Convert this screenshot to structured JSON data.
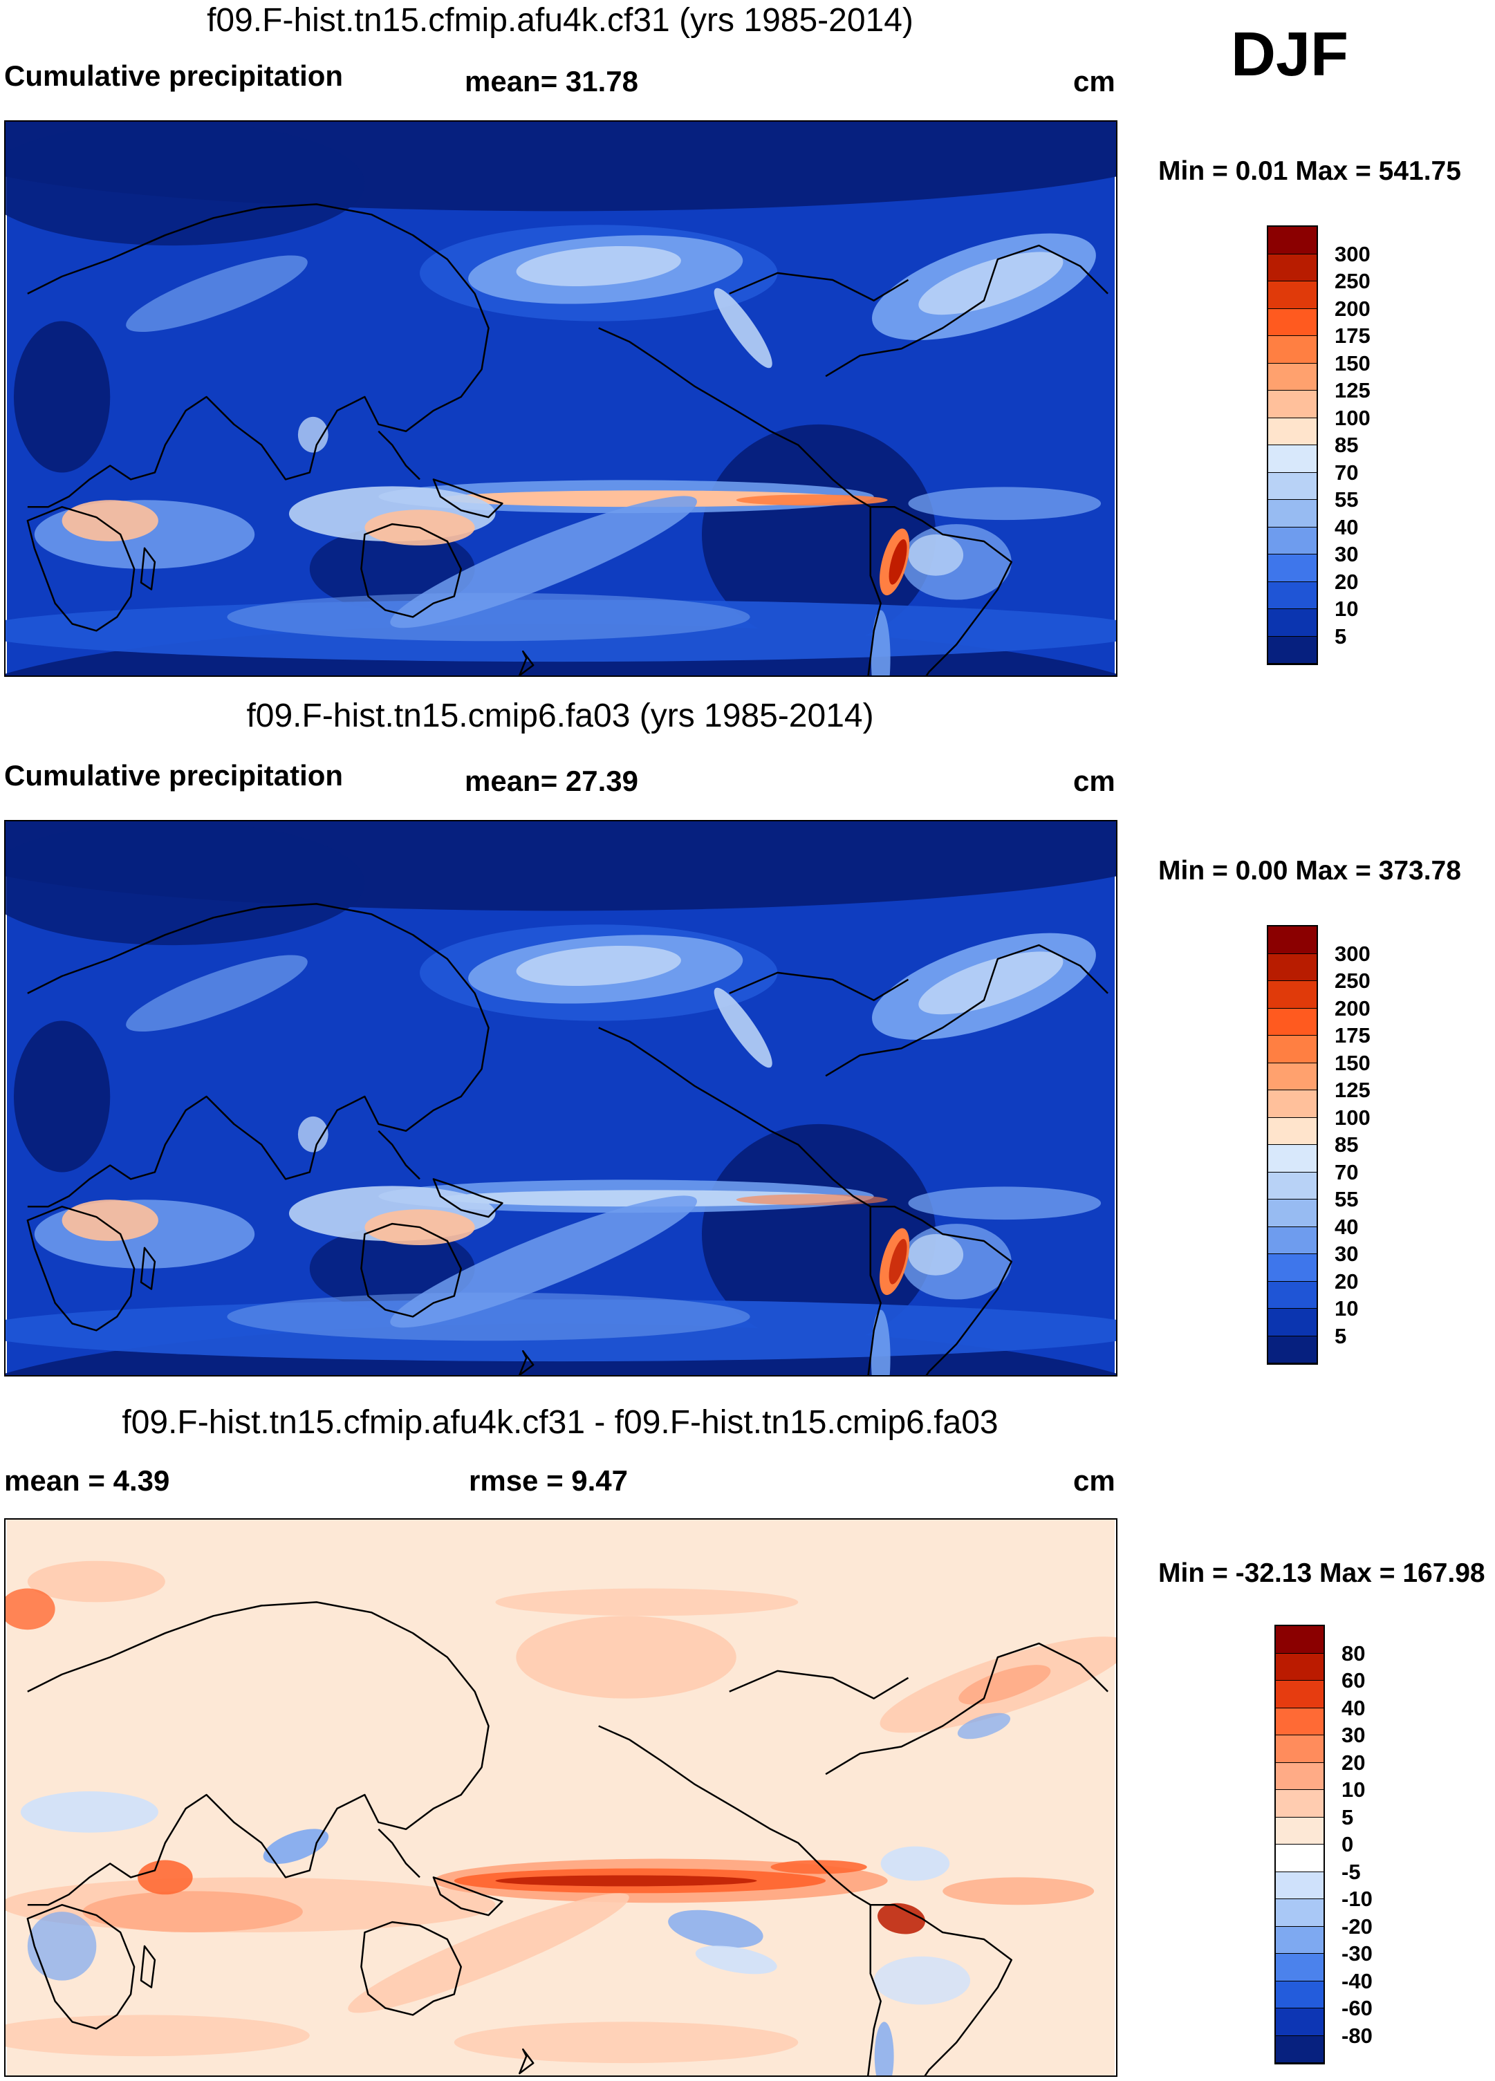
{
  "season": "DJF",
  "panels": [
    {
      "title": "f09.F-hist.tn15.cfmip.afu4k.cf31 (yrs 1985-2014)",
      "left_label": "Cumulative precipitation",
      "mid_label": "mean=  31.78",
      "units": "cm",
      "minmax": "Min =    0.01 Max = 541.75",
      "colorbar_labels": [
        "300",
        "250",
        "200",
        "175",
        "150",
        "125",
        "100",
        "85",
        "70",
        "55",
        "40",
        "30",
        "20",
        "10",
        "5"
      ],
      "colorbar_colors": [
        "#8b0000",
        "#b81c00",
        "#e03a0a",
        "#ff5a1f",
        "#ff7f42",
        "#ffa16e",
        "#ffc09b",
        "#ffe4cc",
        "#d8e8fb",
        "#b8d2f6",
        "#97bbf2",
        "#6e9cee",
        "#3e76eb",
        "#1f55d6",
        "#0b35b0",
        "#06207f"
      ],
      "palette": "precip"
    },
    {
      "title": "f09.F-hist.tn15.cmip6.fa03 (yrs 1985-2014)",
      "left_label": "Cumulative precipitation",
      "mid_label": "mean=  27.39",
      "units": "cm",
      "minmax": "Min =    0.00 Max = 373.78",
      "colorbar_labels": [
        "300",
        "250",
        "200",
        "175",
        "150",
        "125",
        "100",
        "85",
        "70",
        "55",
        "40",
        "30",
        "20",
        "10",
        "5"
      ],
      "colorbar_colors": [
        "#8b0000",
        "#b81c00",
        "#e03a0a",
        "#ff5a1f",
        "#ff7f42",
        "#ffa16e",
        "#ffc09b",
        "#ffe4cc",
        "#d8e8fb",
        "#b8d2f6",
        "#97bbf2",
        "#6e9cee",
        "#3e76eb",
        "#1f55d6",
        "#0b35b0",
        "#06207f"
      ],
      "palette": "precip"
    },
    {
      "title": "f09.F-hist.tn15.cfmip.afu4k.cf31 - f09.F-hist.tn15.cmip6.fa03",
      "left_label": "mean =    4.39",
      "mid_label": "rmse =    9.47",
      "units": "cm",
      "minmax": "Min = -32.13 Max = 167.98",
      "colorbar_labels": [
        "80",
        "60",
        "40",
        "30",
        "20",
        "10",
        "5",
        "0",
        "-5",
        "-10",
        "-20",
        "-30",
        "-40",
        "-60",
        "-80"
      ],
      "colorbar_colors": [
        "#8b0000",
        "#bb1b00",
        "#e63c10",
        "#ff6a35",
        "#ff8c5c",
        "#ffab86",
        "#ffccb0",
        "#fde8d6",
        "#ffffff",
        "#cfe1fb",
        "#a9c8f6",
        "#7ea9f1",
        "#4b82ec",
        "#235cdc",
        "#0d36b4",
        "#07217f"
      ],
      "palette": "diff"
    }
  ]
}
